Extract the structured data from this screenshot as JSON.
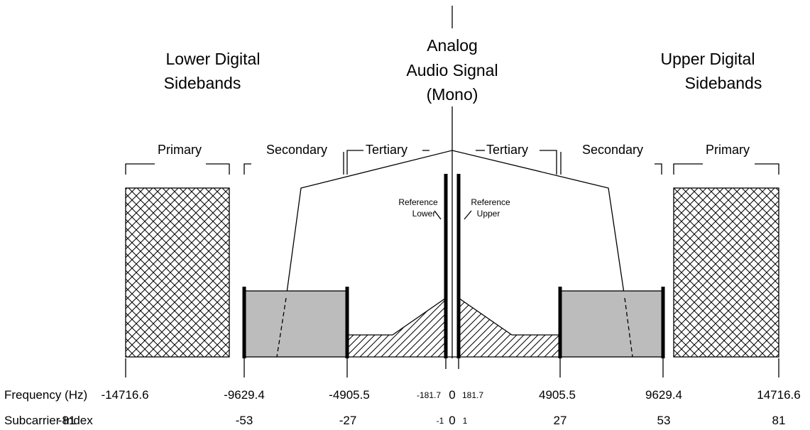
{
  "headings": {
    "lower": [
      "Lower Digital",
      "Sidebands"
    ],
    "analog": [
      "Analog",
      "Audio Signal",
      "(Mono)"
    ],
    "upper": [
      "Upper Digital",
      "Sidebands"
    ]
  },
  "bands": {
    "primary_left": "Primary",
    "secondary_left": "Secondary",
    "tertiary_left": "Tertiary",
    "tertiary_right": "Tertiary",
    "secondary_right": "Secondary",
    "primary_right": "Primary"
  },
  "reference": {
    "lower": [
      "Reference",
      "Lower"
    ],
    "upper": [
      "Reference",
      "Upper"
    ]
  },
  "axis": {
    "frequency_label": "Frequency (Hz)",
    "subcarrier_label": "Subcarrier Index",
    "frequencies": [
      "-14716.6",
      "-9629.4",
      "-4905.5",
      "-181.7",
      "0",
      "181.7",
      "4905.5",
      "9629.4",
      "14716.6"
    ],
    "subcarriers": [
      "-81",
      "-53",
      "-27",
      "-1",
      "0",
      "1",
      "27",
      "53",
      "81"
    ]
  },
  "colors": {
    "secondary_fill": "#bcbcbc",
    "line": "#000000",
    "background": "#ffffff"
  }
}
